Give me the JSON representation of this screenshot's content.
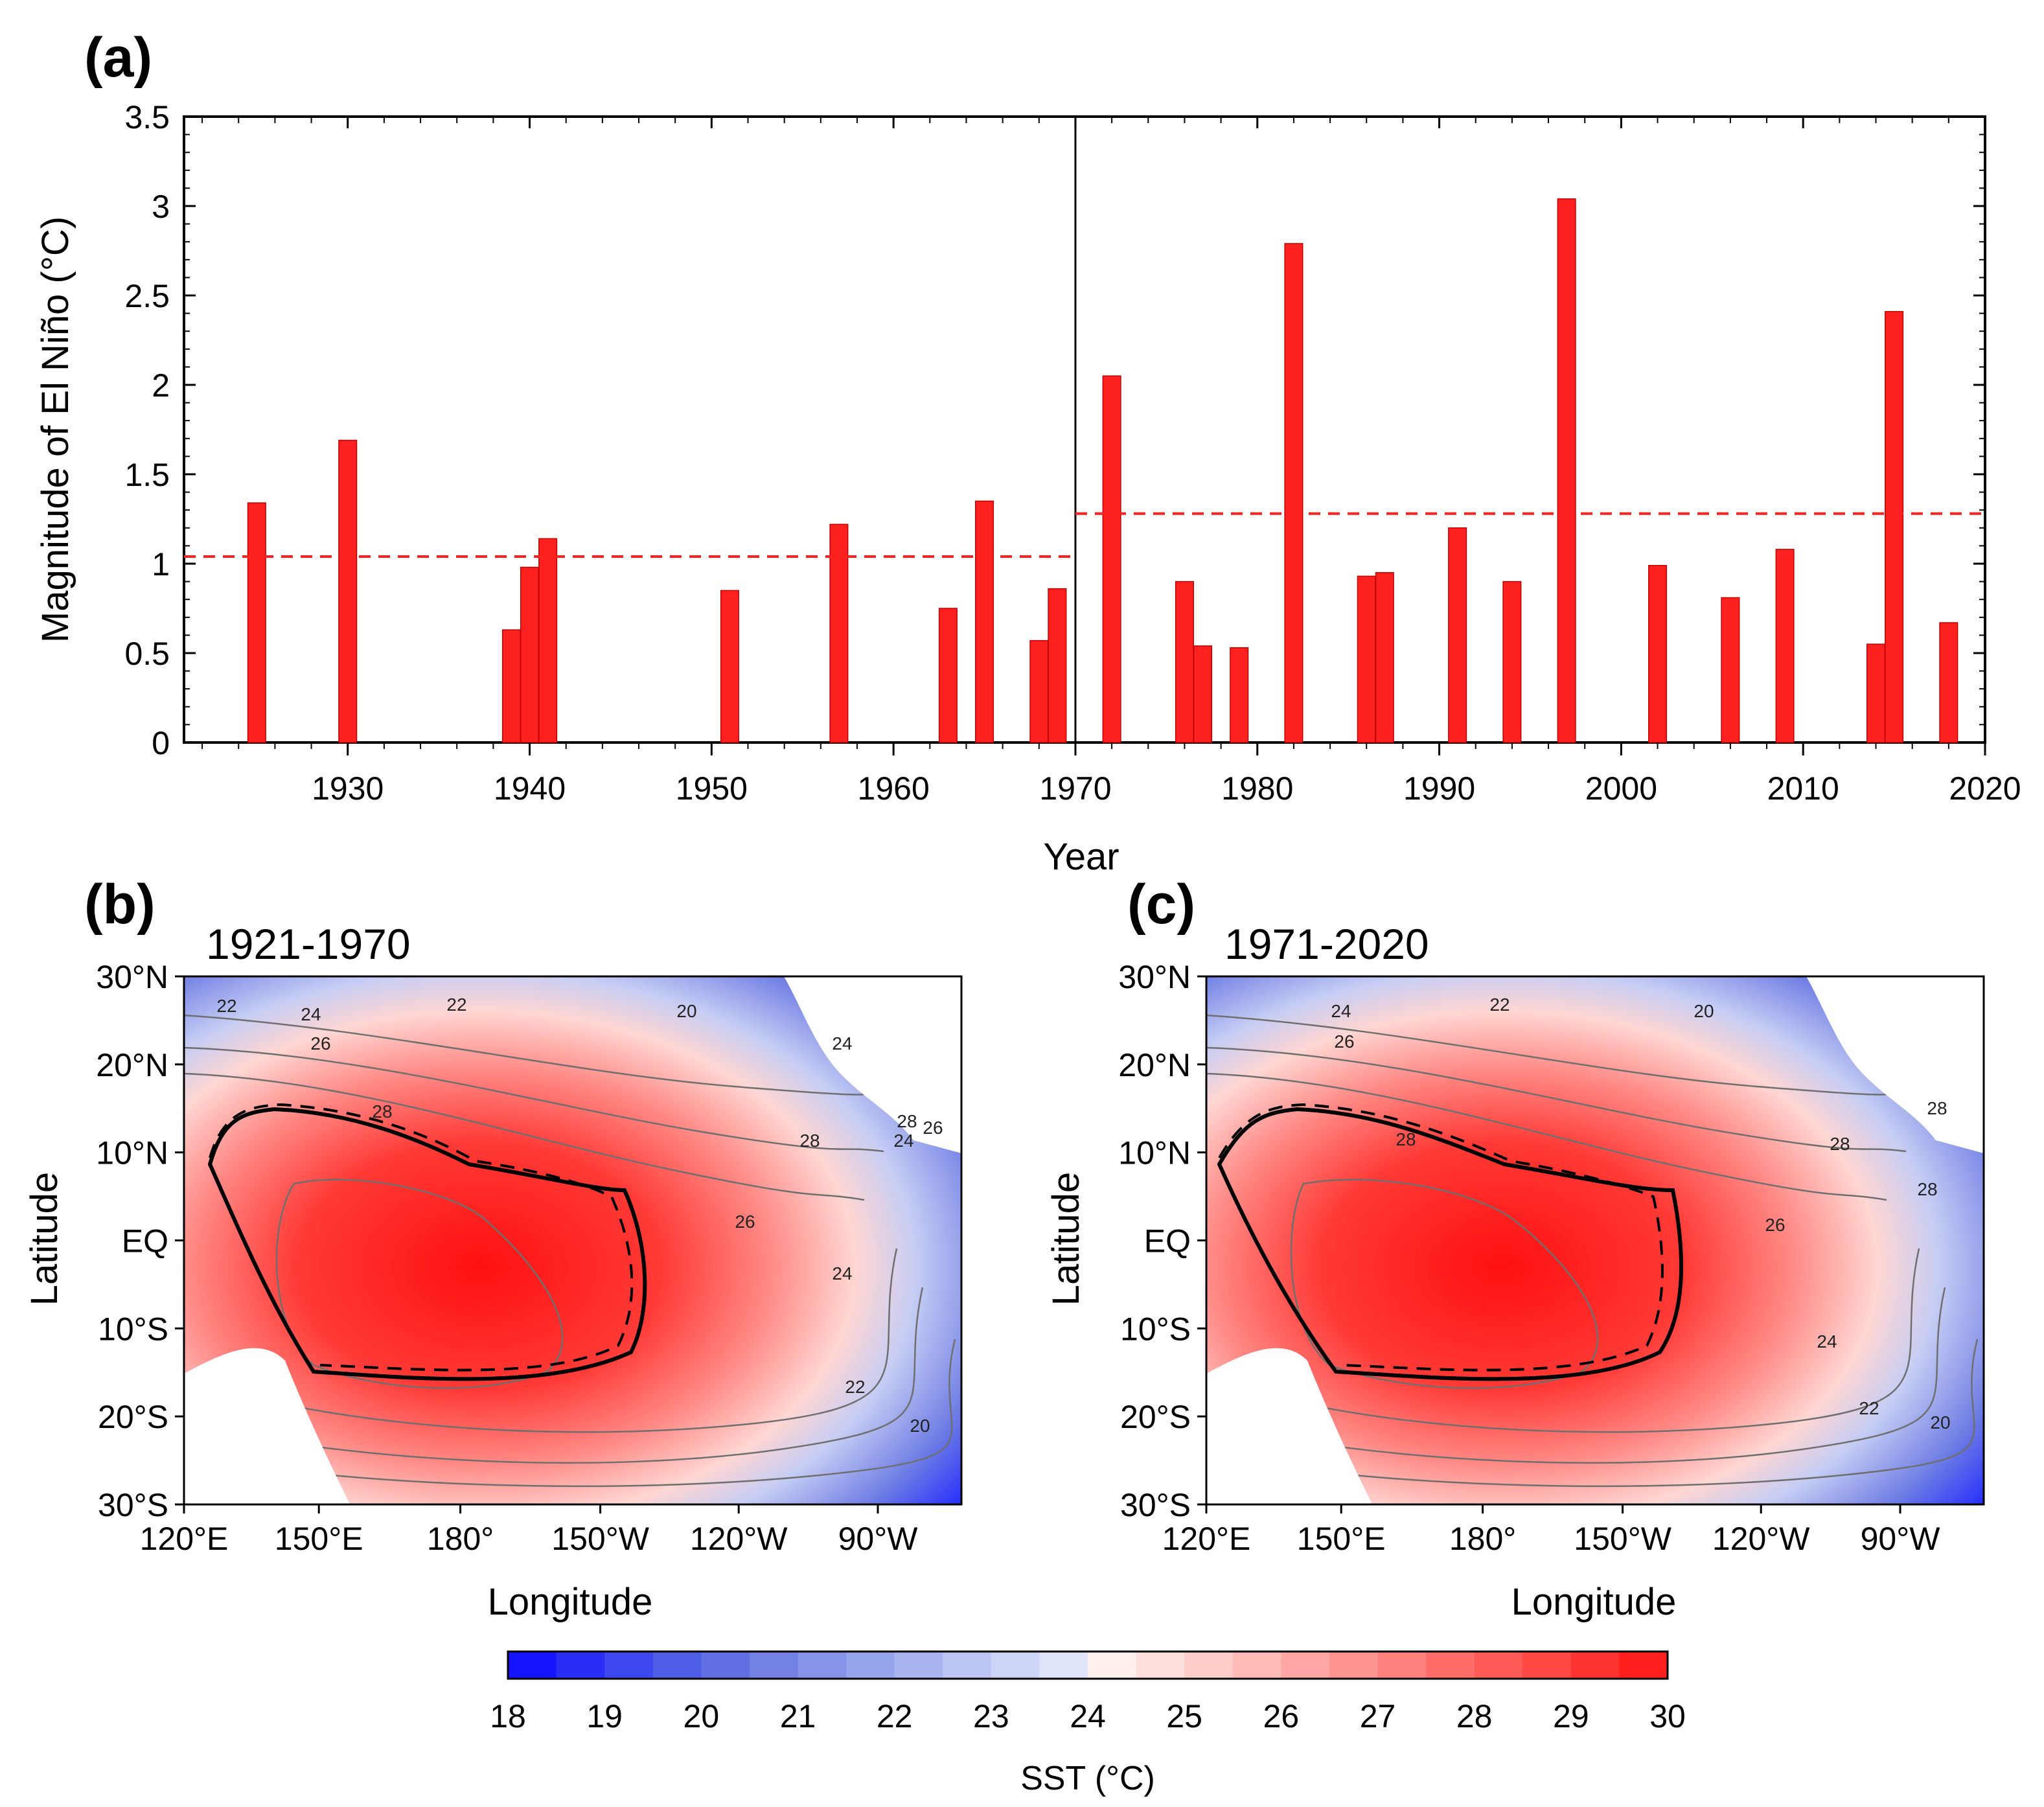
{
  "panel_a": {
    "label": "(a)",
    "chart_data": {
      "type": "bar",
      "title": "",
      "xlabel": "Year",
      "ylabel": "Magnitude of El Niño (°C)",
      "xlim": [
        1921,
        2020
      ],
      "ylim": [
        0,
        3.5
      ],
      "x_ticks": [
        "1930",
        "1940",
        "1950",
        "1960",
        "1970",
        "1980",
        "1990",
        "2000",
        "2010",
        "2020"
      ],
      "y_ticks": [
        "0",
        "0.5",
        "1",
        "1.5",
        "2",
        "2.5",
        "3",
        "3.5"
      ],
      "bar_color": "#ff2020",
      "years": [
        1925,
        1930,
        1939,
        1940,
        1941,
        1951,
        1957,
        1963,
        1965,
        1968,
        1969,
        1972,
        1976,
        1977,
        1979,
        1982,
        1986,
        1987,
        1991,
        1994,
        1997,
        2002,
        2006,
        2009,
        2014,
        2015,
        2018
      ],
      "values": [
        1.34,
        1.69,
        0.63,
        0.98,
        1.14,
        0.85,
        1.22,
        0.75,
        1.35,
        0.57,
        0.86,
        2.05,
        0.9,
        0.54,
        0.53,
        2.79,
        0.93,
        0.95,
        1.2,
        0.9,
        3.04,
        0.99,
        0.81,
        1.08,
        0.55,
        2.41,
        0.67
      ],
      "divider_year": 1970,
      "period_means": [
        {
          "period": "1921-1970",
          "mean": 1.04
        },
        {
          "period": "1971-2020",
          "mean": 1.28
        }
      ]
    }
  },
  "panel_b": {
    "label": "(b)",
    "title": "1921-1970",
    "xlabel": "Longitude",
    "ylabel": "Latitude",
    "lon_ticks": [
      "120°E",
      "150°E",
      "180°",
      "150°W",
      "120°W",
      "90°W"
    ],
    "lat_ticks": [
      "30°N",
      "20°N",
      "10°N",
      "EQ",
      "10°S",
      "20°S",
      "30°S"
    ],
    "contour_labels": [
      "22",
      "24",
      "22",
      "20",
      "26",
      "28",
      "24",
      "28",
      "28",
      "26",
      "24",
      "26",
      "24",
      "22",
      "20"
    ],
    "chart_data": {
      "type": "heatmap",
      "variable": "SST",
      "units": "°C",
      "lon_range": [
        "120°E",
        "70°W"
      ],
      "lat_range": [
        "30°S",
        "30°N"
      ],
      "warm_pool_28C": "solid",
      "warm_pool_28C_compare": "dashed"
    }
  },
  "panel_c": {
    "label": "(c)",
    "title": "1971-2020",
    "xlabel": "Longitude",
    "ylabel": "Latitude",
    "lon_ticks": [
      "120°E",
      "150°E",
      "180°",
      "150°W",
      "120°W",
      "90°W"
    ],
    "lat_ticks": [
      "30°N",
      "20°N",
      "10°N",
      "EQ",
      "10°S",
      "20°S",
      "30°S"
    ],
    "contour_labels": [
      "24",
      "22",
      "20",
      "26",
      "28",
      "28",
      "28",
      "26",
      "24",
      "22",
      "20",
      "28"
    ],
    "chart_data": {
      "type": "heatmap",
      "variable": "SST",
      "units": "°C",
      "lon_range": [
        "120°E",
        "70°W"
      ],
      "lat_range": [
        "30°S",
        "30°N"
      ],
      "warm_pool_28C": "solid",
      "warm_pool_28C_compare": "dashed"
    }
  },
  "colorbar": {
    "label": "SST (°C)",
    "min": 18,
    "max": 30,
    "step": 0.5,
    "ticks": [
      "18",
      "19",
      "20",
      "21",
      "22",
      "23",
      "24",
      "25",
      "26",
      "27",
      "28",
      "29",
      "30"
    ],
    "colors": [
      "#1414ff",
      "#2a2ef5",
      "#3c48ee",
      "#4e5de6",
      "#616fe2",
      "#7381e4",
      "#8593e8",
      "#97a5ec",
      "#aab5f0",
      "#bcc5f3",
      "#cfd5f6",
      "#e1e5f9",
      "#fff0ee",
      "#ffdfdc",
      "#ffcdca",
      "#ffbbb8",
      "#ffa7a4",
      "#ff9591",
      "#ff817d",
      "#ff6d69",
      "#ff5a56",
      "#ff4743",
      "#ff3330",
      "#ff1f1c"
    ]
  }
}
